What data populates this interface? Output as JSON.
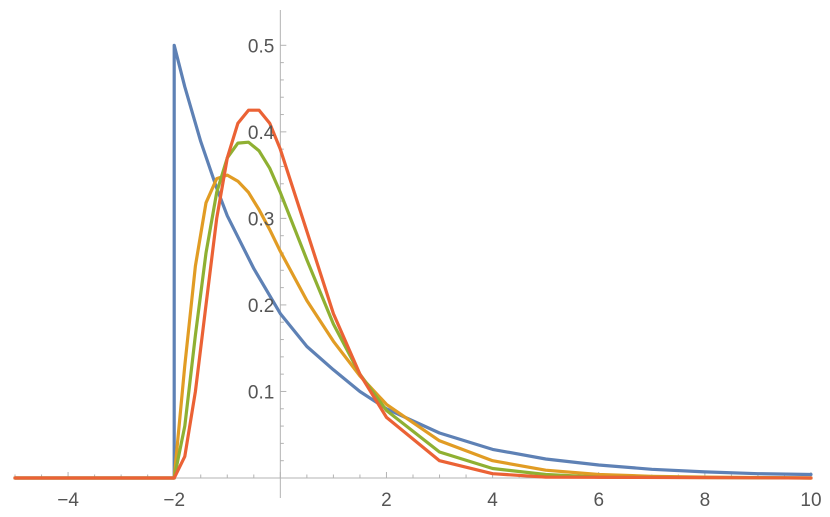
{
  "chart_data": {
    "type": "line",
    "title": "",
    "xlabel": "",
    "ylabel": "",
    "xlim": [
      -5,
      10
    ],
    "ylim": [
      0,
      0.52
    ],
    "x_ticks": [
      -4,
      -2,
      2,
      4,
      6,
      8,
      10
    ],
    "x_tick_labels": [
      "−4",
      "−2",
      "2",
      "4",
      "6",
      "8",
      "10"
    ],
    "y_ticks": [
      0.1,
      0.2,
      0.3,
      0.4,
      0.5
    ],
    "y_tick_labels": [
      "0.1",
      "0.2",
      "0.3",
      "0.4",
      "0.5"
    ],
    "grid": false,
    "series": [
      {
        "color": "#5e81b5",
        "x": [
          -5,
          -2.05,
          -2.0,
          -2.0,
          -1.8,
          -1.5,
          -1.2,
          -1.0,
          -0.5,
          0,
          0.5,
          1.0,
          1.5,
          2.0,
          3.0,
          4.0,
          5.0,
          6.0,
          7.0,
          8.0,
          9.0,
          10.0
        ],
        "y": [
          0,
          0,
          0,
          0.5,
          0.452,
          0.389,
          0.335,
          0.303,
          0.242,
          0.19,
          0.152,
          0.125,
          0.1,
          0.08,
          0.052,
          0.033,
          0.022,
          0.015,
          0.01,
          0.007,
          0.005,
          0.004
        ]
      },
      {
        "color": "#e19c24",
        "x": [
          -5,
          -2.1,
          -2.0,
          -1.8,
          -1.6,
          -1.4,
          -1.2,
          -1.0,
          -0.8,
          -0.6,
          -0.4,
          -0.2,
          0,
          0.5,
          1.0,
          1.5,
          2.0,
          3.0,
          4.0,
          5.0,
          6.0,
          7.0,
          8.0,
          10.0
        ],
        "y": [
          0,
          0,
          0,
          0.13,
          0.245,
          0.318,
          0.346,
          0.35,
          0.343,
          0.33,
          0.31,
          0.287,
          0.262,
          0.205,
          0.158,
          0.118,
          0.085,
          0.043,
          0.02,
          0.009,
          0.004,
          0.002,
          0.001,
          0
        ]
      },
      {
        "color": "#8fb032",
        "x": [
          -5,
          -2.1,
          -2.0,
          -1.8,
          -1.6,
          -1.4,
          -1.2,
          -1.0,
          -0.8,
          -0.6,
          -0.4,
          -0.2,
          0,
          0.5,
          1.0,
          1.5,
          2.0,
          3.0,
          4.0,
          5.0,
          6.0,
          10.0
        ],
        "y": [
          0,
          0,
          0,
          0.06,
          0.165,
          0.26,
          0.33,
          0.37,
          0.387,
          0.388,
          0.378,
          0.358,
          0.33,
          0.252,
          0.178,
          0.12,
          0.078,
          0.03,
          0.011,
          0.004,
          0.001,
          0
        ]
      },
      {
        "color": "#eb6235",
        "x": [
          -5,
          -2.0,
          -1.8,
          -1.6,
          -1.4,
          -1.2,
          -1.0,
          -0.8,
          -0.6,
          -0.4,
          -0.2,
          0,
          0.5,
          1.0,
          1.5,
          2.0,
          3.0,
          4.0,
          5.0,
          10.0
        ],
        "y": [
          0,
          0,
          0.025,
          0.1,
          0.2,
          0.3,
          0.37,
          0.41,
          0.425,
          0.425,
          0.41,
          0.38,
          0.285,
          0.19,
          0.12,
          0.07,
          0.02,
          0.005,
          0.001,
          0
        ]
      }
    ]
  }
}
